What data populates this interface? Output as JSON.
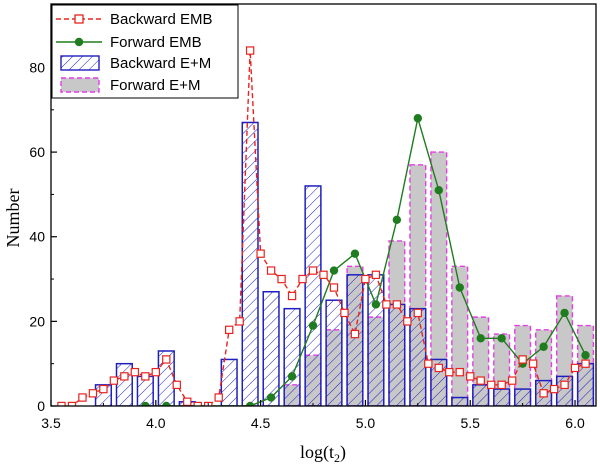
{
  "chart_data": {
    "type": "bar",
    "xlabel": "log(t2)",
    "xlabel_main": "log(t",
    "xlabel_sub": "2",
    "xlabel_close": ")",
    "ylabel": "Number",
    "xlim": [
      3.5,
      6.1
    ],
    "ylim": [
      0,
      95
    ],
    "xticks": [
      "3.5",
      "4.0",
      "4.5",
      "5.0",
      "5.5",
      "6.0"
    ],
    "yticks": [
      "0",
      "20",
      "40",
      "60",
      "80"
    ],
    "legend_position": "top-left",
    "grid": false,
    "colors": {
      "backward_emb": "#e8231f",
      "forward_emb": "#1f7d1f",
      "backward_em": "#1f1fbf",
      "forward_em_fill": "#c8c8c8",
      "forward_em_edge": "#e63ce6"
    },
    "bar_width": 0.075,
    "x": [
      3.55,
      3.6,
      3.65,
      3.7,
      3.75,
      3.8,
      3.85,
      3.9,
      3.95,
      4.0,
      4.05,
      4.1,
      4.15,
      4.2,
      4.25,
      4.3,
      4.35,
      4.4,
      4.45,
      4.5,
      4.55,
      4.6,
      4.65,
      4.7,
      4.75,
      4.8,
      4.85,
      4.9,
      4.95,
      5.0,
      5.05,
      5.1,
      5.15,
      5.2,
      5.25,
      5.3,
      5.35,
      5.4,
      5.45,
      5.5,
      5.55,
      5.6,
      5.65,
      5.7,
      5.75,
      5.8,
      5.85,
      5.9,
      5.95,
      6.0,
      6.05
    ],
    "series": [
      {
        "name": "Backward EMB",
        "style": "dashed-line-open-square",
        "values": [
          0,
          0,
          2,
          3,
          4,
          6,
          7,
          8,
          7,
          8,
          11,
          5,
          1,
          0,
          0,
          2,
          18,
          20,
          84,
          36,
          32,
          30,
          26,
          30,
          32,
          31,
          28,
          22,
          17,
          30,
          31,
          24,
          24,
          20,
          22,
          10,
          9,
          8,
          8,
          7,
          6,
          5,
          5,
          6,
          11,
          10,
          3,
          4,
          5,
          9,
          10
        ]
      },
      {
        "name": "Forward EMB",
        "style": "solid-line-filled-circle",
        "points": [
          {
            "x": 3.95,
            "y": 0
          },
          {
            "x": 4.05,
            "y": 0
          },
          {
            "x": 4.45,
            "y": 0
          },
          {
            "x": 4.55,
            "y": 2
          },
          {
            "x": 4.65,
            "y": 7
          },
          {
            "x": 4.75,
            "y": 19
          },
          {
            "x": 4.85,
            "y": 32
          },
          {
            "x": 4.95,
            "y": 36
          },
          {
            "x": 5.05,
            "y": 24
          },
          {
            "x": 5.15,
            "y": 44
          },
          {
            "x": 5.25,
            "y": 68
          },
          {
            "x": 5.35,
            "y": 51
          },
          {
            "x": 5.45,
            "y": 28
          },
          {
            "x": 5.55,
            "y": 16
          },
          {
            "x": 5.65,
            "y": 16
          },
          {
            "x": 5.75,
            "y": 10
          },
          {
            "x": 5.85,
            "y": 14
          },
          {
            "x": 5.95,
            "y": 22
          },
          {
            "x": 6.05,
            "y": 12
          }
        ]
      },
      {
        "name": "Backward E+M",
        "style": "hatched-bar",
        "bars": [
          {
            "x": 3.75,
            "y": 5
          },
          {
            "x": 3.85,
            "y": 10
          },
          {
            "x": 3.95,
            "y": 7
          },
          {
            "x": 4.05,
            "y": 13
          },
          {
            "x": 4.15,
            "y": 1
          },
          {
            "x": 4.35,
            "y": 11
          },
          {
            "x": 4.45,
            "y": 67
          },
          {
            "x": 4.55,
            "y": 27
          },
          {
            "x": 4.65,
            "y": 23
          },
          {
            "x": 4.75,
            "y": 52
          },
          {
            "x": 4.85,
            "y": 25
          },
          {
            "x": 4.95,
            "y": 31
          },
          {
            "x": 5.05,
            "y": 31
          },
          {
            "x": 5.15,
            "y": 24
          },
          {
            "x": 5.25,
            "y": 23
          },
          {
            "x": 5.35,
            "y": 11
          },
          {
            "x": 5.45,
            "y": 2
          },
          {
            "x": 5.55,
            "y": 5
          },
          {
            "x": 5.65,
            "y": 4
          },
          {
            "x": 5.75,
            "y": 4
          },
          {
            "x": 5.85,
            "y": 6
          },
          {
            "x": 5.95,
            "y": 7
          },
          {
            "x": 6.05,
            "y": 10
          }
        ]
      },
      {
        "name": "Forward E+M",
        "style": "gray-bar-magenta-dashed-edge",
        "bars": [
          {
            "x": 4.65,
            "y": 5
          },
          {
            "x": 4.75,
            "y": 12
          },
          {
            "x": 4.85,
            "y": 18
          },
          {
            "x": 4.95,
            "y": 33
          },
          {
            "x": 5.05,
            "y": 21
          },
          {
            "x": 5.15,
            "y": 39
          },
          {
            "x": 5.25,
            "y": 57
          },
          {
            "x": 5.35,
            "y": 60
          },
          {
            "x": 5.45,
            "y": 33
          },
          {
            "x": 5.55,
            "y": 21
          },
          {
            "x": 5.65,
            "y": 17
          },
          {
            "x": 5.75,
            "y": 19
          },
          {
            "x": 5.85,
            "y": 18
          },
          {
            "x": 5.95,
            "y": 26
          },
          {
            "x": 6.05,
            "y": 19
          }
        ]
      }
    ]
  }
}
